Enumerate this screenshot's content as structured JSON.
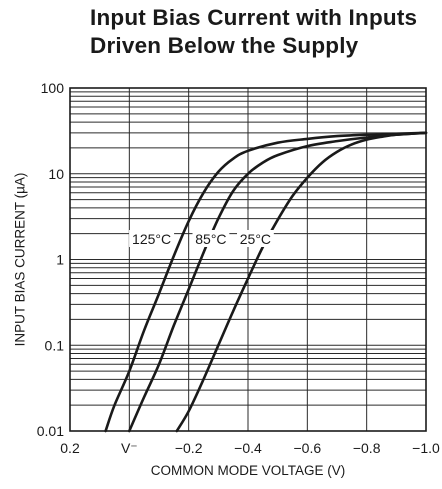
{
  "chart_data": {
    "type": "line",
    "title_lines": [
      "Input Bias Current with Inputs",
      "Driven Below the Supply"
    ],
    "xlabel": "COMMON MODE VOLTAGE (V)",
    "ylabel": "INPUT BIAS CURRENT (µA)",
    "x_scale": "linear",
    "y_scale": "log",
    "xlim": [
      0.2,
      -1.0
    ],
    "ylim": [
      0.01,
      100
    ],
    "x_ticks": [
      {
        "value": 0.2,
        "label": "0.2"
      },
      {
        "value": 0.0,
        "label": "V⁻"
      },
      {
        "value": -0.2,
        "label": "−0.2"
      },
      {
        "value": -0.4,
        "label": "−0.4"
      },
      {
        "value": -0.6,
        "label": "−0.6"
      },
      {
        "value": -0.8,
        "label": "−0.8"
      },
      {
        "value": -1.0,
        "label": "−1.0"
      }
    ],
    "y_ticks": [
      {
        "value": 100,
        "label": "100"
      },
      {
        "value": 10,
        "label": "10"
      },
      {
        "value": 1,
        "label": "1"
      },
      {
        "value": 0.1,
        "label": "0.1"
      },
      {
        "value": 0.01,
        "label": "0.01"
      }
    ],
    "grid": true,
    "series": [
      {
        "name": "125°C",
        "x": [
          0.08,
          0.05,
          0.0,
          -0.05,
          -0.1,
          -0.15,
          -0.2,
          -0.25,
          -0.3,
          -0.35,
          -0.4,
          -0.5,
          -0.6,
          -0.7,
          -0.8,
          -0.9,
          -1.0
        ],
        "y": [
          0.01,
          0.02,
          0.05,
          0.15,
          0.4,
          1.1,
          2.8,
          6.0,
          10.5,
          15.0,
          18.5,
          23.0,
          25.5,
          27.5,
          28.5,
          29.2,
          30.0
        ]
      },
      {
        "name": "85°C",
        "x": [
          0.0,
          -0.05,
          -0.1,
          -0.15,
          -0.2,
          -0.25,
          -0.3,
          -0.35,
          -0.4,
          -0.45,
          -0.5,
          -0.6,
          -0.7,
          -0.8,
          -0.9,
          -1.0
        ],
        "y": [
          0.01,
          0.025,
          0.06,
          0.17,
          0.45,
          1.2,
          3.0,
          6.3,
          10.0,
          13.5,
          16.5,
          21.0,
          24.0,
          26.5,
          28.5,
          30.0
        ]
      },
      {
        "name": "25°C",
        "x": [
          -0.16,
          -0.2,
          -0.25,
          -0.3,
          -0.35,
          -0.4,
          -0.45,
          -0.5,
          -0.55,
          -0.6,
          -0.65,
          -0.7,
          -0.75,
          -0.8,
          -0.85,
          -0.9,
          -0.95,
          -1.0
        ],
        "y": [
          0.01,
          0.017,
          0.04,
          0.1,
          0.25,
          0.6,
          1.4,
          2.9,
          5.5,
          9.0,
          13.5,
          18.0,
          22.0,
          25.0,
          27.0,
          28.5,
          29.3,
          30.0
        ]
      }
    ],
    "annotations": [
      {
        "text": "125°C",
        "series": "125°C",
        "x": -0.075,
        "y": 1.6
      },
      {
        "text": "85°C",
        "series": "85°C",
        "x": -0.275,
        "y": 1.6
      },
      {
        "text": "25°C",
        "series": "25°C",
        "x": -0.425,
        "y": 1.6
      }
    ]
  }
}
